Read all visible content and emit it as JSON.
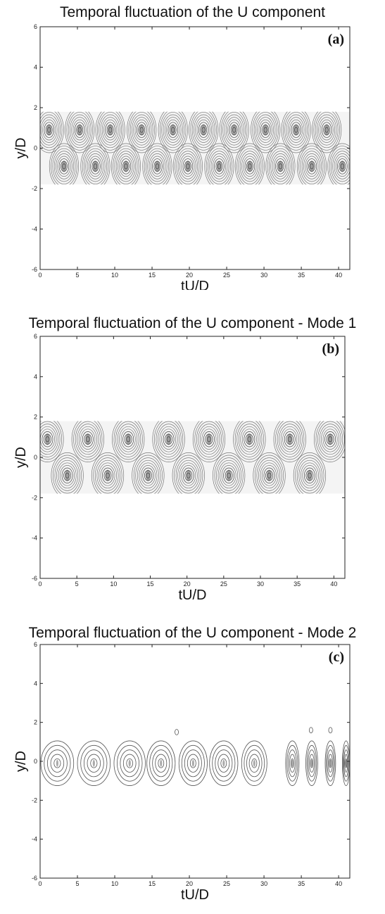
{
  "chart_data": [
    {
      "type": "contour",
      "title": "Temporal fluctuation of the U component",
      "panel_label": "(a)",
      "xlabel": "tU/D",
      "ylabel": "y/D",
      "xlim": [
        0,
        41.5
      ],
      "ylim": [
        -6,
        6
      ],
      "xticks": [
        "0",
        "5",
        "10",
        "15",
        "20",
        "25",
        "30",
        "35",
        "40"
      ],
      "yticks": [
        "-6",
        "-4",
        "-2",
        "0",
        "2",
        "4",
        "6"
      ],
      "band_y": [
        -1.8,
        1.8
      ],
      "upper_vortex_centers_x": [
        1.2,
        5.3,
        9.4,
        13.6,
        17.8,
        21.9,
        26.0,
        30.2,
        34.3,
        38.4
      ],
      "lower_vortex_centers_x": [
        3.2,
        7.4,
        11.5,
        15.7,
        19.8,
        24.0,
        28.1,
        32.2,
        36.4,
        40.5
      ],
      "vortex_y": [
        0.9,
        -0.9
      ]
    },
    {
      "type": "contour",
      "title": "Temporal fluctuation of the U component - Mode 1",
      "panel_label": "(b)",
      "xlabel": "tU/D",
      "ylabel": "y/D",
      "xlim": [
        0,
        41.5
      ],
      "ylim": [
        -6,
        6
      ],
      "xticks": [
        "0",
        "5",
        "10",
        "15",
        "20",
        "25",
        "30",
        "35",
        "40"
      ],
      "yticks": [
        "-6",
        "-4",
        "-2",
        "0",
        "2",
        "4",
        "6"
      ],
      "band_y": [
        -1.8,
        1.8
      ],
      "upper_vortex_centers_x": [
        1.0,
        6.5,
        12.0,
        17.5,
        23.0,
        28.5,
        34.0,
        39.5
      ],
      "lower_vortex_centers_x": [
        3.7,
        9.2,
        14.7,
        20.2,
        25.7,
        31.2,
        36.7
      ],
      "vortex_y": [
        0.9,
        -0.9
      ]
    },
    {
      "type": "contour",
      "title": "Temporal fluctuation of the U component - Mode 2",
      "panel_label": "(c)",
      "xlabel": "tU/D",
      "ylabel": "y/D",
      "xlim": [
        0,
        41.5
      ],
      "ylim": [
        -6,
        6
      ],
      "xticks": [
        "0",
        "5",
        "10",
        "15",
        "20",
        "25",
        "30",
        "35",
        "40"
      ],
      "yticks": [
        "-6",
        "-4",
        "-2",
        "0",
        "2",
        "4",
        "6"
      ],
      "cell_centers_x": [
        2.3,
        7.2,
        12.0,
        16.2,
        20.5,
        24.6,
        28.7,
        33.8,
        36.4,
        38.9,
        41.0
      ],
      "cell_half_widths": [
        2.2,
        2.2,
        2.1,
        1.9,
        1.9,
        1.9,
        1.7,
        0.9,
        0.8,
        0.7,
        0.5
      ],
      "cell_y": -0.1,
      "small_islands": [
        [
          18.3,
          1.5
        ],
        [
          36.3,
          1.6
        ],
        [
          38.9,
          1.6
        ]
      ]
    }
  ]
}
